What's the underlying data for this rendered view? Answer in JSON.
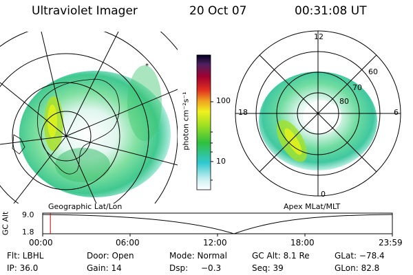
{
  "header": {
    "instrument": "Ultraviolet Imager",
    "date": "20 Oct 07",
    "time": "00:31:08 UT"
  },
  "left_map": {
    "label": "Geographic Lat/Lon"
  },
  "right_map": {
    "label": "Apex MLat/MLT",
    "mlt_labels": [
      "12",
      "18",
      "6",
      "0"
    ],
    "lat_labels": [
      "60",
      "70",
      "80"
    ]
  },
  "colorbar": {
    "ylabel": "photon cm⁻²s⁻¹",
    "ticks": [
      "100",
      "10"
    ],
    "scale": "log"
  },
  "altitude_plot": {
    "ylabel": "GC Alt",
    "y_ticks": [
      "9.0",
      "1.8"
    ],
    "x_ticks": [
      "00:00",
      "06:00",
      "12:00",
      "18:00",
      "23:59"
    ],
    "current_time_fraction": 0.022
  },
  "info": {
    "filter": "Flt: LBHL",
    "door": "Door: Open",
    "mode": "Mode: Normal",
    "gc_alt": "GC Alt: 8.1 Re",
    "glat": "GLat: −78.4",
    "ip": "IP: 36.0",
    "gain": "Gain: 14",
    "dsp": "Dsp:",
    "dsp_value": "−0.3",
    "seq": "Seq: 39",
    "glon": "GLon:  82.8"
  }
}
